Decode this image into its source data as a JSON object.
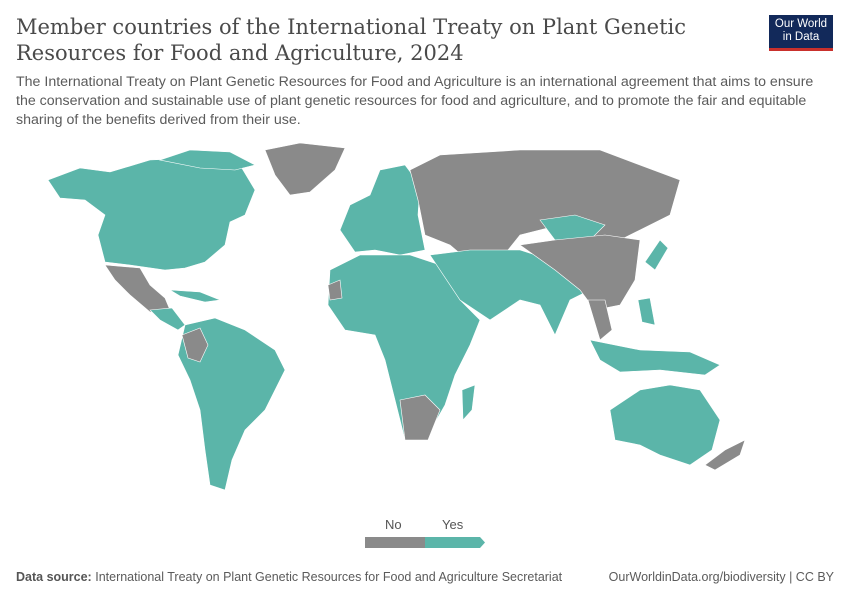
{
  "header": {
    "title": "Member countries of the International Treaty on Plant Genetic Resources for Food and Agriculture, 2024",
    "subtitle": "The International Treaty on Plant Genetic Resources for Food and Agriculture is an international agreement that aims to ensure the conservation and sustainable use of plant genetic resources for food and agriculture, and to promote the fair and equitable sharing of the benefits derived from their use.",
    "logo_line1": "Our World",
    "logo_line2": "in Data"
  },
  "legend": {
    "items": [
      {
        "label": "No",
        "color": "#8a8a8a"
      },
      {
        "label": "Yes",
        "color": "#5bb5a9"
      }
    ]
  },
  "footer": {
    "source_label": "Data source:",
    "source": "International Treaty on Plant Genetic Resources for Food and Agriculture Secretariat",
    "credit": "OurWorldinData.org/biodiversity | CC BY"
  },
  "chart_data": {
    "type": "choropleth",
    "year": 2024,
    "categories": [
      "No",
      "Yes"
    ],
    "colors": {
      "No": "#8a8a8a",
      "Yes": "#5bb5a9"
    }
  }
}
